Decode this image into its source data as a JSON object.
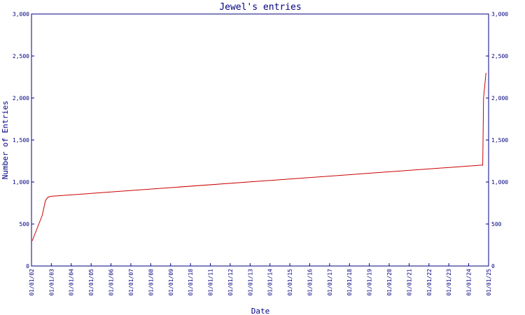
{
  "chart_data": {
    "type": "line",
    "title": "Jewel's entries",
    "xlabel": "Date",
    "ylabel": "Number of Entries",
    "ylim": [
      0,
      3000
    ],
    "xlim": [
      "2002-01-01",
      "2025-01-01"
    ],
    "yticks": [
      {
        "value": 0,
        "label": "0"
      },
      {
        "value": 500,
        "label": "500"
      },
      {
        "value": 1000,
        "label": "1,000"
      },
      {
        "value": 1500,
        "label": "1,500"
      },
      {
        "value": 2000,
        "label": "2,000"
      },
      {
        "value": 2500,
        "label": "2,500"
      },
      {
        "value": 3000,
        "label": "3,000"
      }
    ],
    "xticks": [
      {
        "value": "2002-01-01",
        "label": "01/01/02"
      },
      {
        "value": "2003-01-01",
        "label": "01/01/03"
      },
      {
        "value": "2004-01-01",
        "label": "01/01/04"
      },
      {
        "value": "2005-01-01",
        "label": "01/01/05"
      },
      {
        "value": "2006-01-01",
        "label": "01/01/06"
      },
      {
        "value": "2007-01-01",
        "label": "01/01/07"
      },
      {
        "value": "2008-01-01",
        "label": "01/01/08"
      },
      {
        "value": "2009-01-01",
        "label": "01/01/09"
      },
      {
        "value": "2010-01-01",
        "label": "01/01/10"
      },
      {
        "value": "2011-01-01",
        "label": "01/01/11"
      },
      {
        "value": "2012-01-01",
        "label": "01/01/12"
      },
      {
        "value": "2013-01-01",
        "label": "01/01/13"
      },
      {
        "value": "2014-01-01",
        "label": "01/01/14"
      },
      {
        "value": "2015-01-01",
        "label": "01/01/15"
      },
      {
        "value": "2016-01-01",
        "label": "01/01/16"
      },
      {
        "value": "2017-01-01",
        "label": "01/01/17"
      },
      {
        "value": "2018-01-01",
        "label": "01/01/18"
      },
      {
        "value": "2019-01-01",
        "label": "01/01/19"
      },
      {
        "value": "2020-01-01",
        "label": "01/01/20"
      },
      {
        "value": "2021-01-01",
        "label": "01/01/21"
      },
      {
        "value": "2022-01-01",
        "label": "01/01/22"
      },
      {
        "value": "2023-01-01",
        "label": "01/01/23"
      },
      {
        "value": "2024-01-01",
        "label": "01/01/24"
      },
      {
        "value": "2025-01-01",
        "label": "01/01/25"
      }
    ],
    "grid": false,
    "series": [
      {
        "color": "#cc0000",
        "points": [
          {
            "x": "2002-01-15",
            "y": 300
          },
          {
            "x": "2002-04-15",
            "y": 450
          },
          {
            "x": "2002-07-15",
            "y": 600
          },
          {
            "x": "2002-09-15",
            "y": 780
          },
          {
            "x": "2002-11-01",
            "y": 820
          },
          {
            "x": "2003-01-01",
            "y": 830
          },
          {
            "x": "2024-08-01",
            "y": 1200
          },
          {
            "x": "2024-09-15",
            "y": 1200
          },
          {
            "x": "2024-10-01",
            "y": 2000
          },
          {
            "x": "2024-11-15",
            "y": 2300
          }
        ]
      }
    ]
  }
}
